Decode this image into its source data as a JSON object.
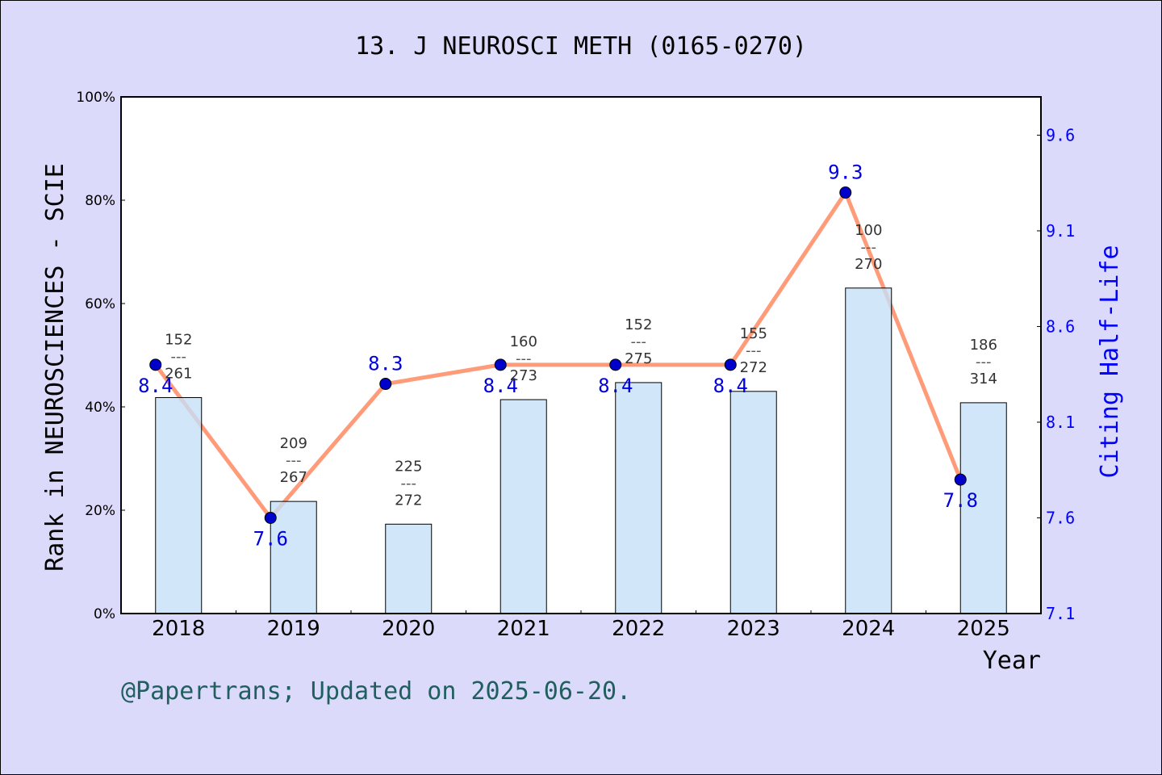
{
  "chart_data": {
    "type": "bar+line",
    "title": "13. J NEUROSCI METH (0165-0270)",
    "xlabel": "Year",
    "ylabel": "Rank in NEUROSCIENCES - SCIE",
    "y2label": "Citing Half-Life",
    "categories": [
      "2018",
      "2019",
      "2020",
      "2021",
      "2022",
      "2023",
      "2024",
      "2025"
    ],
    "ylim": [
      0,
      100
    ],
    "yticks": [
      "0%",
      "20%",
      "40%",
      "60%",
      "80%",
      "100%"
    ],
    "y2lim": [
      7.1,
      9.8
    ],
    "y2ticks": [
      "7.1",
      "7.6",
      "8.1",
      "8.6",
      "9.1",
      "9.6"
    ],
    "ranks": [
      152,
      209,
      225,
      160,
      152,
      155,
      100,
      186
    ],
    "totals": [
      261,
      267,
      272,
      273,
      275,
      272,
      270,
      314
    ],
    "bar_values_percent": [
      41.8,
      21.7,
      17.3,
      41.4,
      44.7,
      43.0,
      63.0,
      40.8
    ],
    "half_life": [
      8.4,
      7.6,
      8.3,
      8.4,
      8.4,
      8.4,
      9.3,
      7.8
    ],
    "colors": {
      "bar": "#c5e0f7",
      "line": "#ff9b78",
      "marker": "#0000cc",
      "y2": "#0000ff",
      "footer": "#1f5f5f",
      "background": "#dcdafa"
    }
  },
  "footer": "@Papertrans; Updated on 2025-06-20."
}
